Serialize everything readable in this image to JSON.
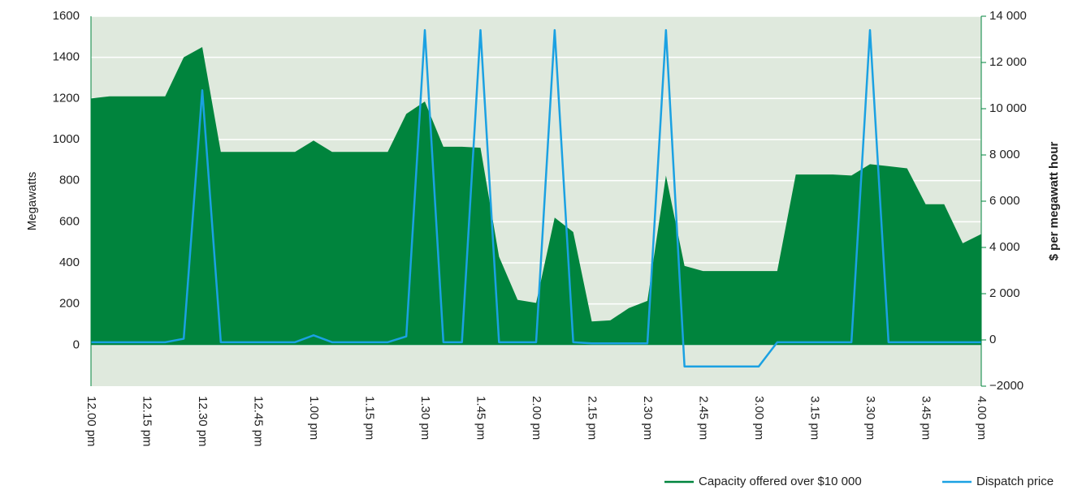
{
  "chart_data": {
    "type": "area_line",
    "y_label": "Megawatts",
    "y2_label": "$ per megawatt hour",
    "categories": [
      "12.00 pm",
      null,
      null,
      "12.15 pm",
      null,
      null,
      "12.30 pm",
      null,
      null,
      "12.45 pm",
      null,
      null,
      "1.00 pm",
      null,
      null,
      "1.15 pm",
      null,
      null,
      "1.30 pm",
      null,
      null,
      "1.45 pm",
      null,
      null,
      "2.00 pm",
      null,
      null,
      "2.15 pm",
      null,
      null,
      "2.30 pm",
      null,
      null,
      "2.45 pm",
      null,
      null,
      "3.00 pm",
      null,
      null,
      "3.15 pm",
      null,
      null,
      "3.30 pm",
      null,
      null,
      "3.45 pm",
      null,
      null,
      "4.00 pm"
    ],
    "series": [
      {
        "name": "Capacity offered over $10 000",
        "color": "#00843d",
        "axis": "y",
        "values": [
          1200,
          1210,
          1210,
          1210,
          1210,
          1400,
          1450,
          940,
          940,
          940,
          940,
          940,
          995,
          940,
          940,
          940,
          940,
          1125,
          1185,
          965,
          965,
          960,
          430,
          220,
          205,
          620,
          550,
          115,
          120,
          180,
          215,
          825,
          385,
          360,
          360,
          360,
          360,
          360,
          830,
          830,
          830,
          825,
          880,
          870,
          860,
          685,
          685,
          495,
          540
        ]
      },
      {
        "name": "Dispatch price",
        "color": "#1ba1e2",
        "axis": "y2",
        "values": [
          -100,
          -100,
          -100,
          -100,
          -100,
          50,
          10800,
          -100,
          -100,
          -100,
          -100,
          -100,
          200,
          -100,
          -100,
          -100,
          -100,
          150,
          13400,
          -100,
          -100,
          13400,
          -100,
          -100,
          -100,
          13400,
          -100,
          -150,
          -150,
          -150,
          -150,
          13400,
          -1150,
          -1150,
          -1150,
          -1150,
          -1150,
          -100,
          -100,
          -100,
          -100,
          -100,
          13400,
          -100,
          -100,
          -100,
          -100,
          -100,
          -100
        ]
      }
    ],
    "ylim": [
      -200,
      1600
    ],
    "yticks": [
      0,
      200,
      400,
      600,
      800,
      1000,
      1200,
      1400,
      1600
    ],
    "y2lim": [
      -2000,
      14000
    ],
    "y2ticks": [
      {
        "value": -2000,
        "label": "−2000"
      },
      0,
      {
        "value": 2000,
        "label": "2 000"
      },
      {
        "value": 4000,
        "label": "4 000"
      },
      {
        "value": 6000,
        "label": "6 000"
      },
      {
        "value": 8000,
        "label": "8 000"
      },
      {
        "value": 10000,
        "label": "10 000"
      },
      {
        "value": 12000,
        "label": "12 000"
      },
      {
        "value": 14000,
        "label": "14 000"
      }
    ],
    "grid": true,
    "legend": "bottom-right"
  }
}
